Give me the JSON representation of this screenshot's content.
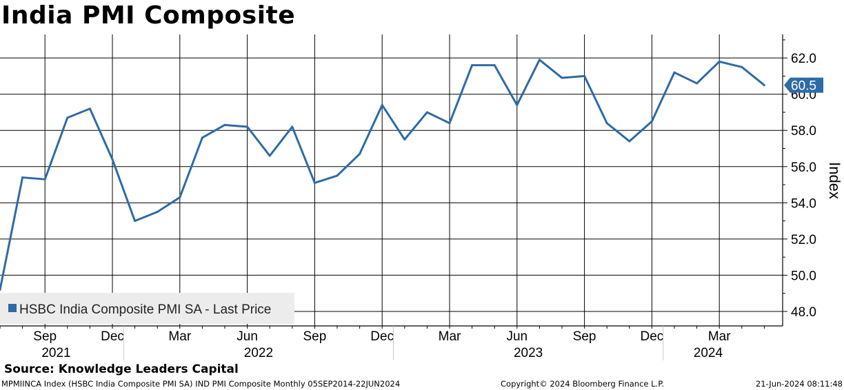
{
  "title": "India PMI Composite",
  "source": "Source: Knowledge Leaders Capital",
  "footer": {
    "left": "MPMIINCA Index (HSBC India Composite PMI SA) IND PMI Composite  Monthly 05SEP2014-22JUN2024",
    "center": "Copyright© 2024 Bloomberg Finance L.P.",
    "right": "21-Jun-2024 08:11:48"
  },
  "colors": {
    "line": "#2e6aa6",
    "grid": "#000000"
  },
  "chart_data": {
    "type": "line",
    "ylabel": "Index",
    "ylim": [
      47.2,
      63.3
    ],
    "y_ticks": [
      48,
      50,
      52,
      54,
      56,
      58,
      60,
      62
    ],
    "y_tick_labels": [
      "48.0",
      "50.0",
      "52.0",
      "54.0",
      "56.0",
      "58.0",
      "60.0",
      "62.0"
    ],
    "x_month_labels": [
      "Sep",
      "Dec",
      "Mar",
      "Jun",
      "Sep",
      "Dec",
      "Mar",
      "Jun",
      "Sep",
      "Dec",
      "Mar"
    ],
    "x_year_labels": [
      "2021",
      "2022",
      "2023",
      "2024"
    ],
    "last_value_label": "60.5",
    "grid": true,
    "legend": {
      "label": "HSBC India Composite PMI SA - Last Price",
      "position": "bottom-left"
    },
    "series": [
      {
        "name": "HSBC India Composite PMI SA - Last Price",
        "x": [
          "2021-07",
          "2021-08",
          "2021-09",
          "2021-10",
          "2021-11",
          "2021-12",
          "2022-01",
          "2022-02",
          "2022-03",
          "2022-04",
          "2022-05",
          "2022-06",
          "2022-07",
          "2022-08",
          "2022-09",
          "2022-10",
          "2022-11",
          "2022-12",
          "2023-01",
          "2023-02",
          "2023-03",
          "2023-04",
          "2023-05",
          "2023-06",
          "2023-07",
          "2023-08",
          "2023-09",
          "2023-10",
          "2023-11",
          "2023-12",
          "2024-01",
          "2024-02",
          "2024-03",
          "2024-04",
          "2024-05"
        ],
        "values": [
          49.2,
          55.4,
          55.3,
          58.7,
          59.2,
          56.4,
          53.0,
          53.5,
          54.3,
          57.6,
          58.3,
          58.2,
          56.6,
          58.2,
          55.1,
          55.5,
          56.7,
          59.4,
          57.5,
          59.0,
          58.4,
          61.6,
          61.6,
          59.4,
          61.9,
          60.9,
          61.0,
          58.4,
          57.4,
          58.5,
          61.2,
          60.6,
          61.8,
          61.5,
          60.5
        ]
      }
    ]
  }
}
